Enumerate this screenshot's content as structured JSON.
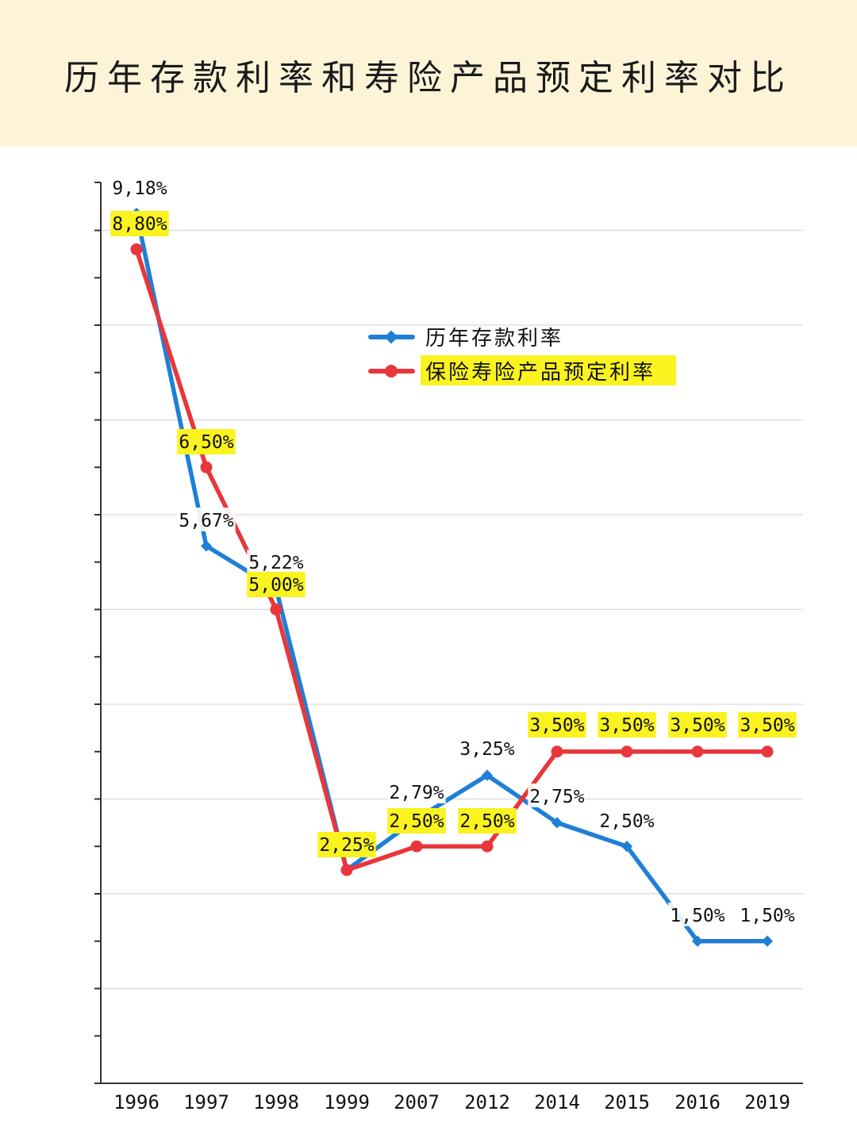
{
  "header": {
    "title": "历年存款利率和寿险产品预定利率对比",
    "background": "#fdf4d8"
  },
  "legend": {
    "items": [
      {
        "label": "历年存款利率",
        "color": "#1f7fd6",
        "marker": "diamond",
        "highlight": false
      },
      {
        "label": "保险寿险产品预定利率",
        "color": "#e8363b",
        "marker": "circle",
        "highlight": true
      }
    ]
  },
  "colors": {
    "deposit": "#1f7fd6",
    "insurance": "#e8363b",
    "label_highlight": "#fbf31f",
    "grid": "#d9d9d9",
    "axis": "#333333"
  },
  "chart_data": {
    "type": "line",
    "title": "历年存款利率和寿险产品预定利率对比",
    "xlabel": "",
    "ylabel": "",
    "categories": [
      "1996",
      "1997",
      "1998",
      "1999",
      "2007",
      "2012",
      "2014",
      "2015",
      "2016",
      "2019"
    ],
    "series": [
      {
        "name": "历年存款利率",
        "color": "#1f7fd6",
        "marker": "diamond",
        "values": [
          9.18,
          5.67,
          5.22,
          2.25,
          2.79,
          3.25,
          2.75,
          2.5,
          1.5,
          1.5
        ],
        "labels": [
          "9,18%",
          "5,67%",
          "5,22%",
          "",
          "2,79%",
          "3,25%",
          "2,75%",
          "2,50%",
          "1,50%",
          "1,50%"
        ]
      },
      {
        "name": "保险寿险产品预定利率",
        "color": "#e8363b",
        "marker": "circle",
        "values": [
          8.8,
          6.5,
          5.0,
          2.25,
          2.5,
          2.5,
          3.5,
          3.5,
          3.5,
          3.5
        ],
        "labels": [
          "8,80%",
          "6,50%",
          "5,00%",
          "2,25%",
          "2,50%",
          "2,50%",
          "3,50%",
          "3,50%",
          "3,50%",
          "3,50%"
        ]
      }
    ],
    "ylim": [
      0,
      9.5
    ],
    "y_ticks_labeled": false,
    "grid": {
      "horizontal": true,
      "major_step": 1,
      "minor_tick_step": 0.5
    },
    "legend_position": "upper center"
  }
}
